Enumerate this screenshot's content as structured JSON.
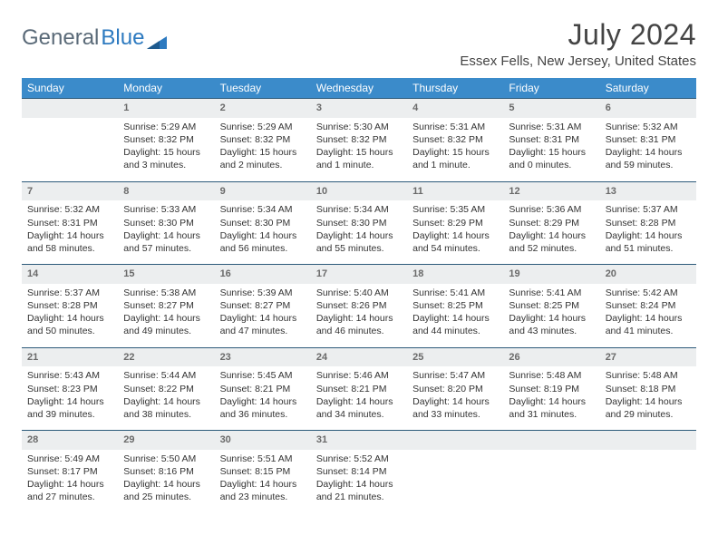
{
  "brand": {
    "part1": "General",
    "part2": "Blue"
  },
  "title": "July 2024",
  "location": "Essex Fells, New Jersey, United States",
  "colors": {
    "header_bg": "#3b8bca",
    "header_text": "#ffffff",
    "daynum_bg": "#eceeef",
    "daynum_text": "#6a6a6a",
    "row_divider": "#2c5a7a",
    "body_text": "#333333",
    "logo_gray": "#5a6a78",
    "logo_blue": "#2d7ac0"
  },
  "weekdays": [
    "Sunday",
    "Monday",
    "Tuesday",
    "Wednesday",
    "Thursday",
    "Friday",
    "Saturday"
  ],
  "weeks": [
    {
      "nums": [
        "",
        "1",
        "2",
        "3",
        "4",
        "5",
        "6"
      ],
      "cells": [
        null,
        {
          "sunrise": "5:29 AM",
          "sunset": "8:32 PM",
          "daylight": "15 hours and 3 minutes."
        },
        {
          "sunrise": "5:29 AM",
          "sunset": "8:32 PM",
          "daylight": "15 hours and 2 minutes."
        },
        {
          "sunrise": "5:30 AM",
          "sunset": "8:32 PM",
          "daylight": "15 hours and 1 minute."
        },
        {
          "sunrise": "5:31 AM",
          "sunset": "8:32 PM",
          "daylight": "15 hours and 1 minute."
        },
        {
          "sunrise": "5:31 AM",
          "sunset": "8:31 PM",
          "daylight": "15 hours and 0 minutes."
        },
        {
          "sunrise": "5:32 AM",
          "sunset": "8:31 PM",
          "daylight": "14 hours and 59 minutes."
        }
      ]
    },
    {
      "nums": [
        "7",
        "8",
        "9",
        "10",
        "11",
        "12",
        "13"
      ],
      "cells": [
        {
          "sunrise": "5:32 AM",
          "sunset": "8:31 PM",
          "daylight": "14 hours and 58 minutes."
        },
        {
          "sunrise": "5:33 AM",
          "sunset": "8:30 PM",
          "daylight": "14 hours and 57 minutes."
        },
        {
          "sunrise": "5:34 AM",
          "sunset": "8:30 PM",
          "daylight": "14 hours and 56 minutes."
        },
        {
          "sunrise": "5:34 AM",
          "sunset": "8:30 PM",
          "daylight": "14 hours and 55 minutes."
        },
        {
          "sunrise": "5:35 AM",
          "sunset": "8:29 PM",
          "daylight": "14 hours and 54 minutes."
        },
        {
          "sunrise": "5:36 AM",
          "sunset": "8:29 PM",
          "daylight": "14 hours and 52 minutes."
        },
        {
          "sunrise": "5:37 AM",
          "sunset": "8:28 PM",
          "daylight": "14 hours and 51 minutes."
        }
      ]
    },
    {
      "nums": [
        "14",
        "15",
        "16",
        "17",
        "18",
        "19",
        "20"
      ],
      "cells": [
        {
          "sunrise": "5:37 AM",
          "sunset": "8:28 PM",
          "daylight": "14 hours and 50 minutes."
        },
        {
          "sunrise": "5:38 AM",
          "sunset": "8:27 PM",
          "daylight": "14 hours and 49 minutes."
        },
        {
          "sunrise": "5:39 AM",
          "sunset": "8:27 PM",
          "daylight": "14 hours and 47 minutes."
        },
        {
          "sunrise": "5:40 AM",
          "sunset": "8:26 PM",
          "daylight": "14 hours and 46 minutes."
        },
        {
          "sunrise": "5:41 AM",
          "sunset": "8:25 PM",
          "daylight": "14 hours and 44 minutes."
        },
        {
          "sunrise": "5:41 AM",
          "sunset": "8:25 PM",
          "daylight": "14 hours and 43 minutes."
        },
        {
          "sunrise": "5:42 AM",
          "sunset": "8:24 PM",
          "daylight": "14 hours and 41 minutes."
        }
      ]
    },
    {
      "nums": [
        "21",
        "22",
        "23",
        "24",
        "25",
        "26",
        "27"
      ],
      "cells": [
        {
          "sunrise": "5:43 AM",
          "sunset": "8:23 PM",
          "daylight": "14 hours and 39 minutes."
        },
        {
          "sunrise": "5:44 AM",
          "sunset": "8:22 PM",
          "daylight": "14 hours and 38 minutes."
        },
        {
          "sunrise": "5:45 AM",
          "sunset": "8:21 PM",
          "daylight": "14 hours and 36 minutes."
        },
        {
          "sunrise": "5:46 AM",
          "sunset": "8:21 PM",
          "daylight": "14 hours and 34 minutes."
        },
        {
          "sunrise": "5:47 AM",
          "sunset": "8:20 PM",
          "daylight": "14 hours and 33 minutes."
        },
        {
          "sunrise": "5:48 AM",
          "sunset": "8:19 PM",
          "daylight": "14 hours and 31 minutes."
        },
        {
          "sunrise": "5:48 AM",
          "sunset": "8:18 PM",
          "daylight": "14 hours and 29 minutes."
        }
      ]
    },
    {
      "nums": [
        "28",
        "29",
        "30",
        "31",
        "",
        "",
        ""
      ],
      "cells": [
        {
          "sunrise": "5:49 AM",
          "sunset": "8:17 PM",
          "daylight": "14 hours and 27 minutes."
        },
        {
          "sunrise": "5:50 AM",
          "sunset": "8:16 PM",
          "daylight": "14 hours and 25 minutes."
        },
        {
          "sunrise": "5:51 AM",
          "sunset": "8:15 PM",
          "daylight": "14 hours and 23 minutes."
        },
        {
          "sunrise": "5:52 AM",
          "sunset": "8:14 PM",
          "daylight": "14 hours and 21 minutes."
        },
        null,
        null,
        null
      ]
    }
  ]
}
